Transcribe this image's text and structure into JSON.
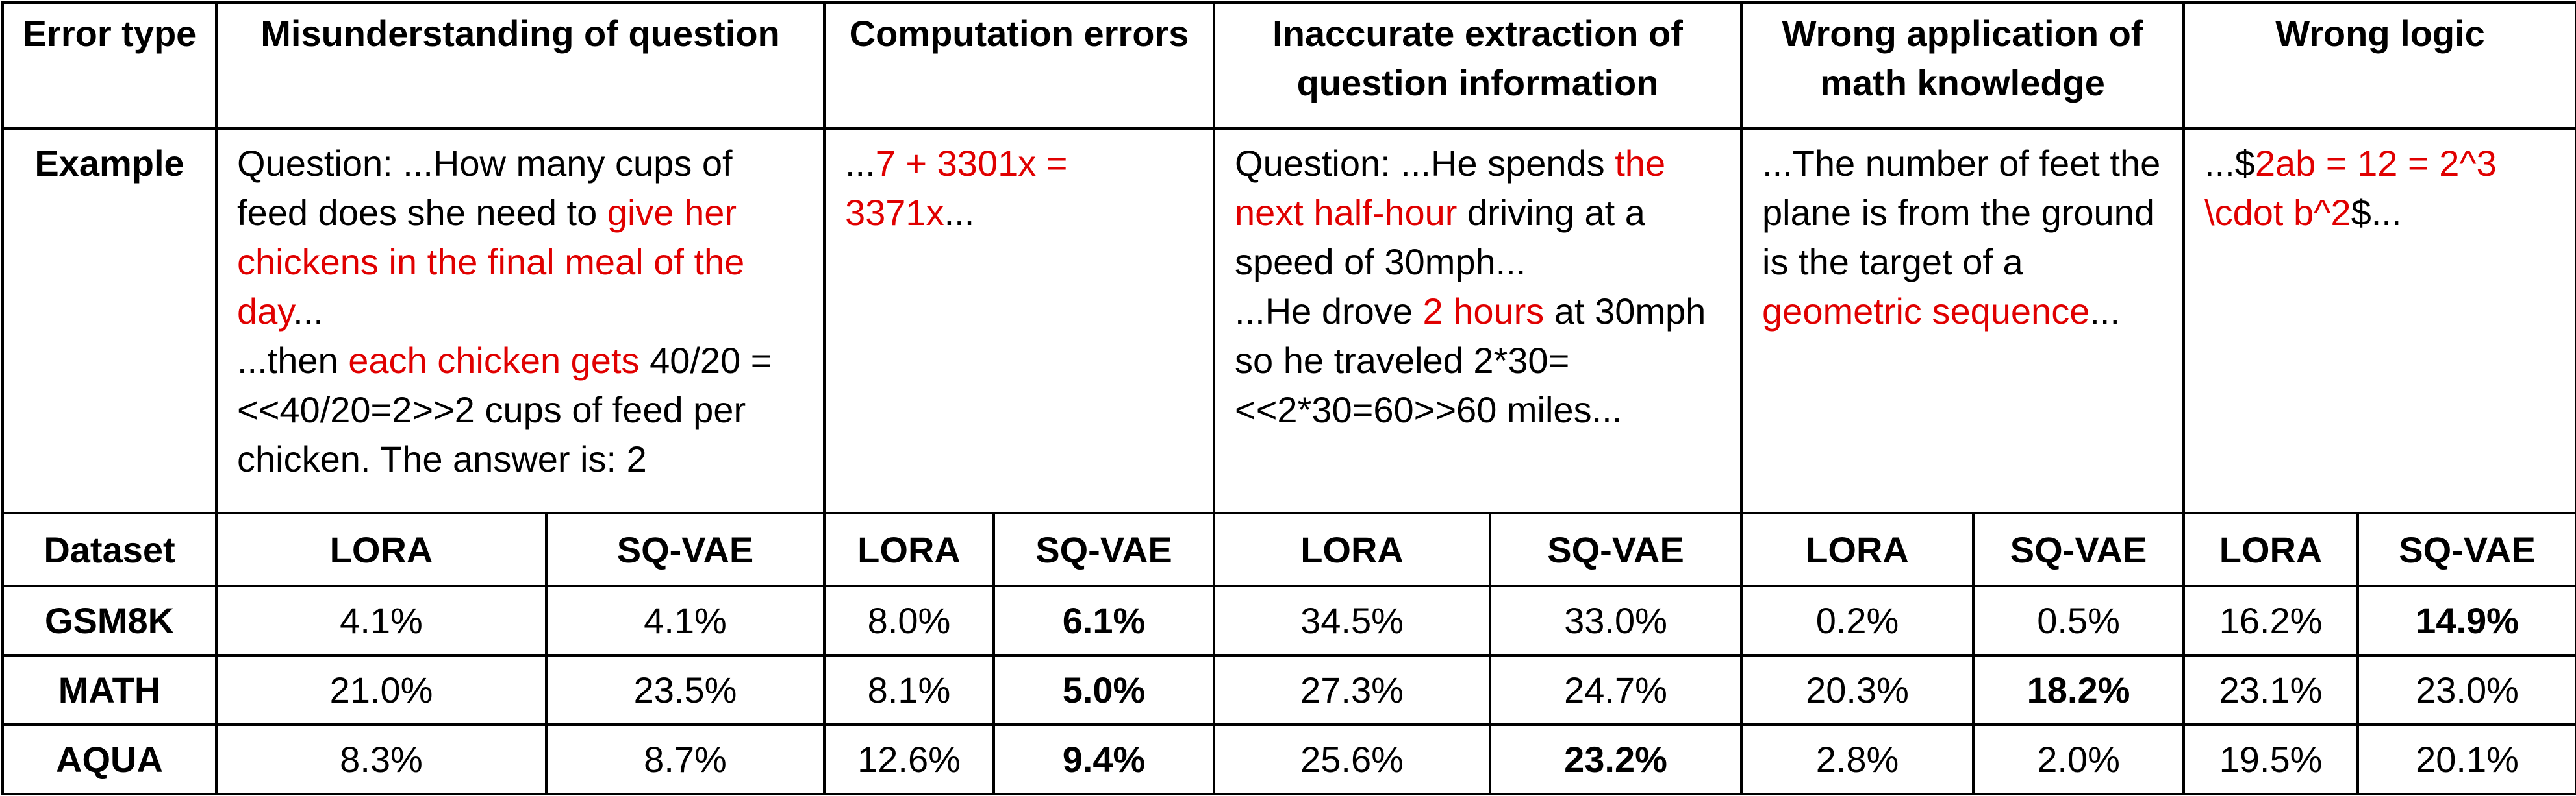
{
  "table": {
    "header": [
      "Error type",
      "Misunderstanding of question",
      "Computation errors",
      "Inaccurate extraction of question information",
      "Wrong application of math knowledge",
      "Wrong logic"
    ],
    "example_label": "Example",
    "examples": [
      [
        [
          "Question: ...How many cups of feed does she need to ",
          "give her chickens in the final meal of the day",
          "..."
        ],
        [
          "...then ",
          "each chicken gets",
          " 40/20 = <<40/20=2>>2 cups of feed per chicken. The answer is: 2"
        ]
      ],
      [
        [
          "...",
          "7 + 3301x = 3371x",
          "..."
        ]
      ],
      [
        [
          "Question: ...He spends ",
          "the next half-hour",
          " driving at a speed of 30mph..."
        ],
        [
          "...He drove ",
          "2 hours",
          " at 30mph so he traveled 2*30=<<2*30=60>>60 miles..."
        ]
      ],
      [
        [
          "...The number of feet the plane is from the ground is the target of a ",
          "geometric sequence",
          "..."
        ]
      ],
      [
        [
          "...$",
          "2ab = 12 = 2^3 \\cdot b^2",
          "$..."
        ]
      ]
    ],
    "subheader": [
      "Dataset",
      "LORA",
      "SQ-VAE",
      "LORA",
      "SQ-VAE",
      "LORA",
      "SQ-VAE",
      "LORA",
      "SQ-VAE",
      "LORA",
      "SQ-VAE"
    ],
    "rows": [
      [
        "GSM8K",
        "4.1%",
        "4.1%",
        "8.0%",
        "6.1%",
        "34.5%",
        "33.0%",
        "0.2%",
        "0.5%",
        "16.2%",
        "14.9%"
      ],
      [
        "MATH",
        "21.0%",
        "23.5%",
        "8.1%",
        "5.0%",
        "27.3%",
        "24.7%",
        "20.3%",
        "18.2%",
        "23.1%",
        "23.0%"
      ],
      [
        "AQUA",
        "8.3%",
        "8.7%",
        "12.6%",
        "9.4%",
        "25.6%",
        "23.2%",
        "2.8%",
        "2.0%",
        "19.5%",
        "20.1%"
      ]
    ]
  }
}
